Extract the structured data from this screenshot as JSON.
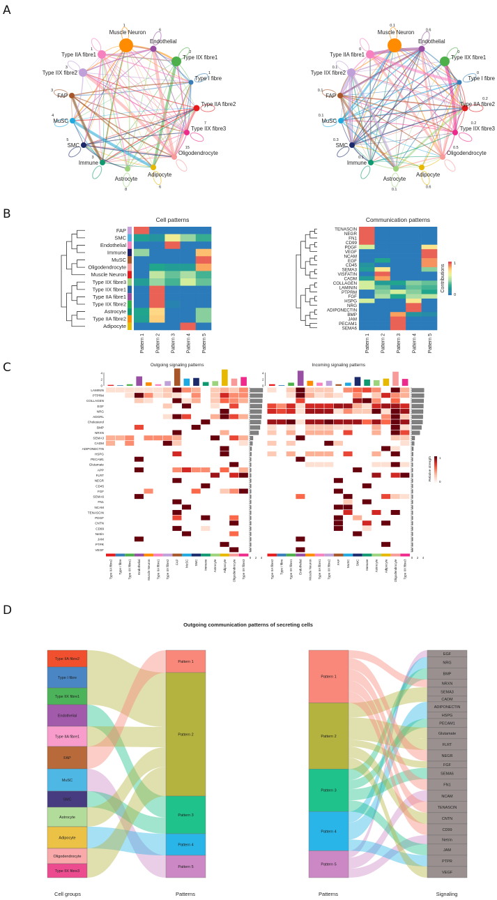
{
  "figure": {
    "panel_labels": [
      "A",
      "B",
      "C",
      "D"
    ]
  },
  "cell_types": [
    {
      "name": "Type IIA fibre2",
      "color": "#e41a1c"
    },
    {
      "name": "Type I fibre",
      "color": "#377eb8"
    },
    {
      "name": "Type IIX fibre1",
      "color": "#4daf4a"
    },
    {
      "name": "Endothelial",
      "color": "#984ea3"
    },
    {
      "name": "Muscle Neuron",
      "color": "#ff8c00"
    },
    {
      "name": "Type IIA fibre1",
      "color": "#f781bf"
    },
    {
      "name": "Type IIX fibre2",
      "color": "#c0a0d8"
    },
    {
      "name": "FAP",
      "color": "#a65628"
    },
    {
      "name": "MuSC",
      "color": "#1fa9e0"
    },
    {
      "name": "SMC",
      "color": "#1b2a6b"
    },
    {
      "name": "Immune",
      "color": "#0f9970"
    },
    {
      "name": "Astrocyte",
      "color": "#9ed37e"
    },
    {
      "name": "Adipocyte",
      "color": "#e6b800"
    },
    {
      "name": "Oligodendrocyte",
      "color": "#f99a9a"
    },
    {
      "name": "Type IIX fibre3",
      "color": "#ee2b8c"
    }
  ],
  "panel_a": {
    "left": {
      "nodes": [
        {
          "name": "Muscle Neuron",
          "loop": "1"
        },
        {
          "name": "Endothelial",
          "loop": "6"
        },
        {
          "name": "Type IIX fibre1",
          "loop": "2"
        },
        {
          "name": "Type I fibre",
          "loop": "1"
        },
        {
          "name": "Type IIA fibre2",
          "loop": ""
        },
        {
          "name": "Type IIX fibre3",
          "loop": "7"
        },
        {
          "name": "Oligodendrocyte",
          "loop": "15"
        },
        {
          "name": "Adipocyte",
          "loop": "6"
        },
        {
          "name": "Astrocyte",
          "loop": "8"
        },
        {
          "name": "Immune",
          "loop": "3"
        },
        {
          "name": "SMC",
          "loop": "5"
        },
        {
          "name": "MuSC",
          "loop": "4"
        },
        {
          "name": "FAP",
          "loop": "3"
        },
        {
          "name": "Type IIX fibre2",
          "loop": "3"
        },
        {
          "name": "Type IIA fibre1",
          "loop": "1"
        }
      ]
    },
    "right": {
      "nodes": [
        {
          "name": "Muscle Neuron",
          "loop": "0.1"
        },
        {
          "name": "Endothelial",
          "loop": "0.6"
        },
        {
          "name": "Type IIX fibre1",
          "loop": "0"
        },
        {
          "name": "Type I fibre",
          "loop": "0"
        },
        {
          "name": "Type IIA fibre2",
          "loop": "0.2"
        },
        {
          "name": "Type IIX fibre3",
          "loop": "0.2"
        },
        {
          "name": "Oligodendrocyte",
          "loop": "0.5"
        },
        {
          "name": "Adipocyte",
          "loop": "0.6"
        },
        {
          "name": "Astrocyte",
          "loop": "0.1"
        },
        {
          "name": "Immune",
          "loop": "0.1"
        },
        {
          "name": "SMC",
          "loop": "0.3"
        },
        {
          "name": "MuSC",
          "loop": "0.1"
        },
        {
          "name": "FAP",
          "loop": "0.1"
        },
        {
          "name": "Type IIX fibre2",
          "loop": "0.1"
        },
        {
          "name": "Type IIA fibre1",
          "loop": "0"
        }
      ]
    }
  },
  "panel_b": {
    "columns": [
      "Pattern 1",
      "Pattern 2",
      "Pattern 3",
      "Pattern 4",
      "Pattern 5"
    ],
    "cell_patterns": {
      "title": "Cell patterns",
      "rows": [
        {
          "name": "FAP",
          "color": "#c9a0dc",
          "values": [
            0.95,
            0,
            0,
            0,
            0
          ]
        },
        {
          "name": "SMC",
          "color": "#4fb3e8",
          "values": [
            0.22,
            0.15,
            0.65,
            0.42,
            0.28
          ]
        },
        {
          "name": "Endothelial",
          "color": "#f77fbf",
          "values": [
            0,
            0,
            0.95,
            0,
            0
          ]
        },
        {
          "name": "Immune",
          "color": "#1b1f6b",
          "values": [
            0.42,
            0,
            0,
            0,
            0.8
          ]
        },
        {
          "name": "MuSC",
          "color": "#a65628",
          "values": [
            0,
            0,
            0,
            0,
            0.95
          ]
        },
        {
          "name": "Oligodendrocyte",
          "color": "#f99a9a",
          "values": [
            0,
            0.25,
            0.2,
            0.2,
            0.85
          ]
        },
        {
          "name": "Muscle Neuron",
          "color": "#e41a1c",
          "values": [
            0,
            0.5,
            0.35,
            0.45,
            0.3
          ]
        },
        {
          "name": "Type IIX fibre3",
          "color": "#9ed37e",
          "values": [
            0.2,
            0.42,
            0.3,
            0.55,
            0.35
          ]
        },
        {
          "name": "Type IIX fibre1",
          "color": "#2166ac",
          "values": [
            0,
            0.95,
            0,
            0,
            0
          ]
        },
        {
          "name": "Type IIA fibre1",
          "color": "#984ea3",
          "values": [
            0,
            0.95,
            0,
            0,
            0
          ]
        },
        {
          "name": "Type IIX fibre2",
          "color": "#2bb34a",
          "values": [
            0,
            0.95,
            0.05,
            0,
            0
          ]
        },
        {
          "name": "Astrocyte",
          "color": "#0f9970",
          "values": [
            0.25,
            0.74,
            0,
            0,
            0.4
          ]
        },
        {
          "name": "Type IIA fibre2",
          "color": "#ff8c00",
          "values": [
            0.22,
            0.76,
            0,
            0,
            0.4
          ]
        },
        {
          "name": "Adipocyte",
          "color": "#e6c000",
          "values": [
            0,
            0,
            0,
            0.95,
            0
          ]
        }
      ]
    },
    "communication_patterns": {
      "title": "Communication patterns",
      "legend_title": "Contributions",
      "legend_max": "1",
      "legend_min": "0",
      "rows": [
        {
          "name": "TENASCIN",
          "values": [
            0.95,
            0,
            0,
            0,
            0
          ]
        },
        {
          "name": "NEGR",
          "values": [
            0.95,
            0,
            0,
            0,
            0
          ]
        },
        {
          "name": "FN1",
          "values": [
            0.95,
            0,
            0,
            0,
            0
          ]
        },
        {
          "name": "CD99",
          "values": [
            0.95,
            0,
            0,
            0,
            0
          ]
        },
        {
          "name": "PDGF",
          "values": [
            0.55,
            0,
            0,
            0,
            0.7
          ]
        },
        {
          "name": "VEGF",
          "values": [
            0,
            0,
            0,
            0,
            0.95
          ]
        },
        {
          "name": "NCAM",
          "values": [
            0,
            0,
            0,
            0,
            0.95
          ]
        },
        {
          "name": "EGF",
          "values": [
            0,
            0.25,
            0,
            0,
            0.88
          ]
        },
        {
          "name": "CD45",
          "values": [
            0.15,
            0,
            0,
            0,
            0.88
          ]
        },
        {
          "name": "SEMA3",
          "values": [
            0.2,
            0.7,
            0,
            0,
            0.4
          ]
        },
        {
          "name": "VISFATIN",
          "values": [
            0,
            0.95,
            0,
            0,
            0
          ]
        },
        {
          "name": "CADM",
          "values": [
            0.2,
            0.86,
            0,
            0,
            0
          ]
        },
        {
          "name": "COLLAGEN",
          "values": [
            0.55,
            0.2,
            0.25,
            0.4,
            0.35
          ]
        },
        {
          "name": "LAMININ",
          "values": [
            0.55,
            0.35,
            0.1,
            0.35,
            0.3
          ]
        },
        {
          "name": "PTPRM",
          "values": [
            0,
            0.4,
            0.55,
            0.4,
            0.25
          ]
        },
        {
          "name": "FGF",
          "values": [
            0,
            0.45,
            0.25,
            0.45,
            0.5
          ]
        },
        {
          "name": "HSPG",
          "values": [
            0.55,
            0,
            0,
            0.68,
            0
          ]
        },
        {
          "name": "NRG",
          "values": [
            0,
            0,
            0,
            0.95,
            0
          ]
        },
        {
          "name": "ADIPONECTIN",
          "values": [
            0,
            0,
            0,
            0.95,
            0
          ]
        },
        {
          "name": "BMP",
          "values": [
            0,
            0,
            0.86,
            0.15,
            0.1
          ]
        },
        {
          "name": "JAM",
          "values": [
            0,
            0,
            0.95,
            0,
            0
          ]
        },
        {
          "name": "PECAM1",
          "values": [
            0,
            0,
            0.95,
            0,
            0
          ]
        },
        {
          "name": "SEMA6",
          "values": [
            0,
            0,
            0.95,
            0,
            0
          ]
        }
      ]
    }
  },
  "panel_c": {
    "signals": [
      "LAMININ",
      "PTPRM",
      "COLLAGEN",
      "EGF",
      "NRG",
      "ADGRL",
      "Cholesterol",
      "BMP",
      "NRXN",
      "SEMA3",
      "CADM",
      "ADIPONECTIN",
      "HSPG",
      "PECAM1",
      "Glutamate",
      "APP",
      "FLRT",
      "NEGR",
      "CD45",
      "FGF",
      "SEMA6",
      "FN1",
      "NCAM",
      "TENASCIN",
      "PDGF",
      "CNTN",
      "CD99",
      "Netrin",
      "JAM",
      "PTPR",
      "VEGF"
    ],
    "axis_ticks": [
      "0",
      "2",
      "4"
    ],
    "legend": {
      "title": "Relative strength",
      "max": "1",
      "min": "0"
    },
    "outgoing": {
      "title": "Outgoing signaling patterns",
      "column_totals": [
        0.3,
        0.2,
        0.5,
        3.0,
        1.1,
        0.5,
        1.5,
        5.5,
        2.3,
        2.5,
        1.2,
        1.5,
        5.2,
        2.3,
        2.8
      ],
      "row_totals": [
        4.5,
        4.4,
        4.3,
        4.2,
        4.1,
        4.0,
        3.8,
        3.5,
        3.0,
        1.0,
        0.8,
        0.5,
        0.4,
        0.3,
        0.3,
        0.3,
        0.3,
        0.3,
        0.3,
        0.3,
        0.3,
        0.3,
        0.3,
        0.3,
        0.3,
        0.3,
        0.3,
        0.3,
        0.3,
        0.3,
        0.3
      ],
      "matrix": [
        "111111294302324",
        "001941210402744",
        "000210091302543",
        "000000209001060",
        "000000000000900",
        "000000196003963",
        "000000000090000",
        "000600000900000",
        "000000090000300",
        "334044430009063",
        "304000920000001",
        "000000000000900",
        "000000070000900",
        "000900000000000",
        "000000000000090",
        "000900047440503",
        "000000000008079",
        "000000090000000",
        "000000000090000",
        "000040000500249",
        "000900000000000",
        "000000090000000",
        "000000009000000",
        "000000090000000",
        "000000060090050",
        "000000000000090",
        "000000090010000",
        "000000009000050",
        "000900000000000",
        "000000000000900",
        "000000000000090"
      ]
    },
    "incoming": {
      "title": "Incoming signaling patterns",
      "column_totals": [
        0.5,
        0.2,
        1.0,
        4.8,
        1.6,
        1.0,
        1.6,
        0.5,
        1.0,
        2.8,
        2.0,
        1.8,
        2.3,
        4.5,
        2.2
      ],
      "row_totals": [
        4.3,
        4.3,
        4.2,
        4.1,
        4.0,
        3.9,
        3.8,
        3.4,
        2.8,
        1.0,
        0.8,
        0.5,
        0.4,
        0.3,
        0.3,
        0.3,
        0.3,
        0.3,
        0.3,
        0.3,
        0.3,
        0.3,
        0.3,
        0.3,
        0.3,
        0.3,
        0.3,
        0.3,
        0.3,
        0.3,
        0.3
      ],
      "matrix": [
        "102922204564093",
        "001931210402743",
        "000600000894050",
        "647177788317887",
        "767188814229198",
        "000000000000492",
        "889188988858598",
        "101022211003091",
        "203033306003096",
        "000900000000022",
        "202000920000001",
        "000000000000910",
        "203033306003090",
        "000900000000000",
        "000011100001191",
        "000000000900000",
        "000000000008079",
        "000000090000000",
        "000000000090000",
        "000000090000000",
        "000500009000621",
        "000000002090000",
        "000000099000000",
        "000000007007090",
        "000000090300000",
        "000000090070900",
        "000000090010000",
        "000000000900000",
        "000900000000000",
        "000000000000900",
        "000900000000000"
      ]
    }
  },
  "panel_d": {
    "title": "Outgoing communication patterns of secreting cells",
    "patterns": [
      {
        "name": "Pattern 1",
        "color": "#f9877a"
      },
      {
        "name": "Pattern 2",
        "color": "#b5b33f"
      },
      {
        "name": "Pattern 3",
        "color": "#1fc28a"
      },
      {
        "name": "Pattern 4",
        "color": "#29b5e8"
      },
      {
        "name": "Pattern 5",
        "color": "#cc88c4"
      }
    ],
    "left": {
      "xlabels": [
        "Cell groups",
        "Patterns"
      ],
      "cells": [
        {
          "name": "Type IIA fibre2",
          "color": "#f0502e",
          "pattern": 2,
          "weight": 24
        },
        {
          "name": "Type I fibre",
          "color": "#4a86c4",
          "pattern": 2,
          "weight": 30
        },
        {
          "name": "Type IIX fibre1",
          "color": "#4db35a",
          "pattern": 2,
          "weight": 24
        },
        {
          "name": "Endothelial",
          "color": "#a25aab",
          "pattern": 3,
          "weight": 31
        },
        {
          "name": "Type IIA fibre1",
          "color": "#f79ccb",
          "pattern": 2,
          "weight": 29
        },
        {
          "name": "FAP",
          "color": "#b96a3a",
          "pattern": 1,
          "weight": 32
        },
        {
          "name": "MuSC",
          "color": "#4fb7e3",
          "pattern": 5,
          "weight": 32
        },
        {
          "name": "SMC",
          "color": "#473c7f",
          "pattern": 3,
          "weight": 23
        },
        {
          "name": "Astrocyte",
          "color": "#b2dc9a",
          "pattern": 2,
          "weight": 28
        },
        {
          "name": "Adipocyte",
          "color": "#ecc246",
          "pattern": 4,
          "weight": 31
        },
        {
          "name": "Oligodendrocyte",
          "color": "#f9a9a9",
          "pattern": 2,
          "weight": 22
        },
        {
          "name": "Type IIX fibre3",
          "color": "#ec4c8f",
          "pattern": 2,
          "weight": 20
        }
      ]
    },
    "right": {
      "xlabels": [
        "Patterns",
        "Signaling"
      ],
      "signal_color": "#9a9090",
      "signals": [
        {
          "name": "EGF",
          "pattern": 5,
          "weight": 0.6
        },
        {
          "name": "NRG",
          "pattern": 4,
          "weight": 1.0
        },
        {
          "name": "BMP",
          "pattern": 3,
          "weight": 1.0
        },
        {
          "name": "NRXN",
          "pattern": 1,
          "weight": 0.7
        },
        {
          "name": "SEMA3",
          "pattern": 2,
          "weight": 0.8
        },
        {
          "name": "CADM",
          "pattern": 2,
          "weight": 0.5
        },
        {
          "name": "ADIPONECTIN",
          "pattern": 4,
          "weight": 0.9
        },
        {
          "name": "HSPG",
          "pattern": 4,
          "weight": 0.6
        },
        {
          "name": "PECAM1",
          "pattern": 3,
          "weight": 0.8
        },
        {
          "name": "Glutamate",
          "pattern": 2,
          "weight": 1.0
        },
        {
          "name": "FLRT",
          "pattern": 2,
          "weight": 1.0
        },
        {
          "name": "NEGR",
          "pattern": 1,
          "weight": 1.0
        },
        {
          "name": "FGF",
          "pattern": 2,
          "weight": 0.6
        },
        {
          "name": "SEMA6",
          "pattern": 3,
          "weight": 1.0
        },
        {
          "name": "FN1",
          "pattern": 1,
          "weight": 1.0
        },
        {
          "name": "NCAM",
          "pattern": 5,
          "weight": 1.0
        },
        {
          "name": "TENASCIN",
          "pattern": 1,
          "weight": 1.0
        },
        {
          "name": "CNTN",
          "pattern": 2,
          "weight": 1.0
        },
        {
          "name": "CD99",
          "pattern": 1,
          "weight": 1.0
        },
        {
          "name": "Netrin",
          "pattern": 5,
          "weight": 0.8
        },
        {
          "name": "JAM",
          "pattern": 3,
          "weight": 1.0
        },
        {
          "name": "PTPR",
          "pattern": 4,
          "weight": 1.0
        },
        {
          "name": "VEGF",
          "pattern": 2,
          "weight": 1.0
        }
      ]
    }
  }
}
